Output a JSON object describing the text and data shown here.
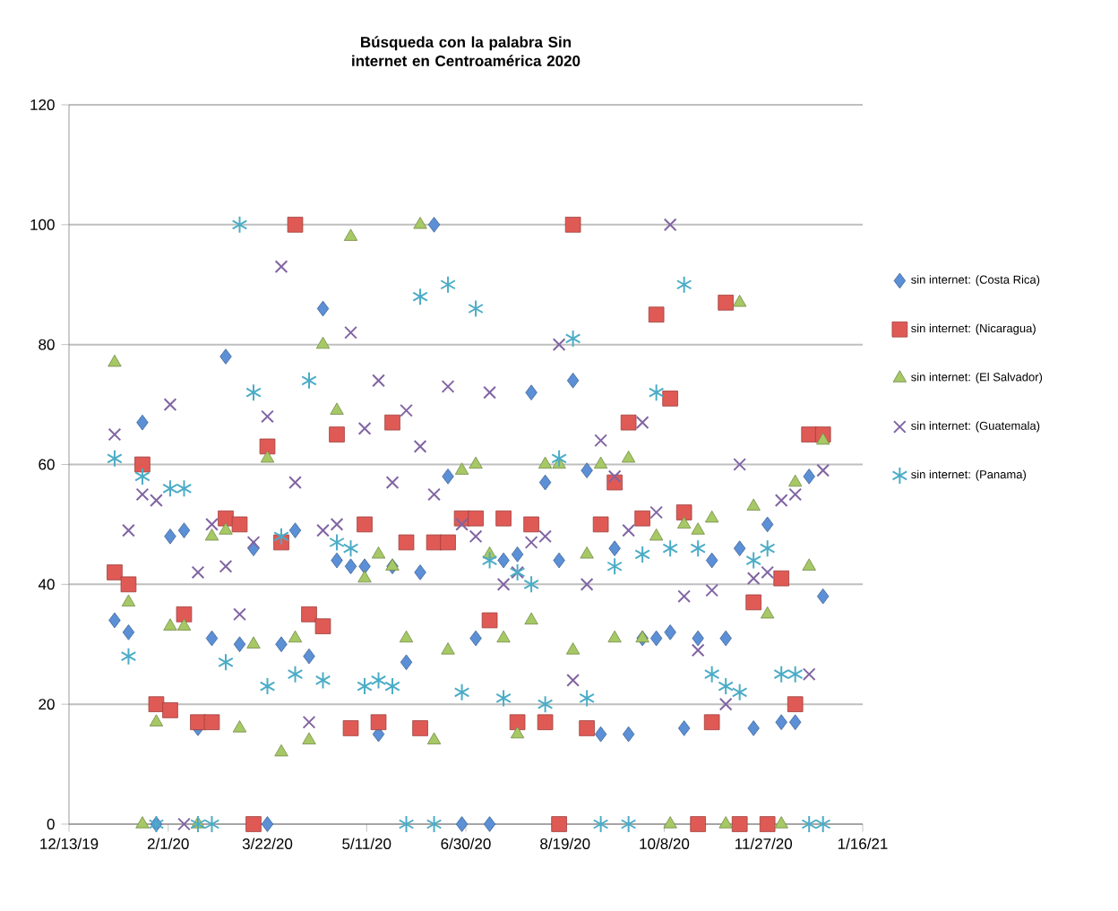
{
  "chart_data": {
    "type": "scatter",
    "title": "Búsqueda con la palabra Sin internet en Centroamérica  2020",
    "x": [
      "2020-01-05",
      "2020-01-12",
      "2020-01-19",
      "2020-01-26",
      "2020-02-02",
      "2020-02-09",
      "2020-02-16",
      "2020-02-23",
      "2020-03-01",
      "2020-03-08",
      "2020-03-15",
      "2020-03-22",
      "2020-03-29",
      "2020-04-05",
      "2020-04-12",
      "2020-04-19",
      "2020-04-26",
      "2020-05-03",
      "2020-05-10",
      "2020-05-17",
      "2020-05-24",
      "2020-05-31",
      "2020-06-07",
      "2020-06-14",
      "2020-06-21",
      "2020-06-28",
      "2020-07-05",
      "2020-07-12",
      "2020-07-19",
      "2020-07-26",
      "2020-08-02",
      "2020-08-09",
      "2020-08-16",
      "2020-08-23",
      "2020-08-30",
      "2020-09-06",
      "2020-09-13",
      "2020-09-20",
      "2020-09-27",
      "2020-10-04",
      "2020-10-11",
      "2020-10-18",
      "2020-10-25",
      "2020-11-01",
      "2020-11-08",
      "2020-11-15",
      "2020-11-22",
      "2020-11-29",
      "2020-12-06",
      "2020-12-13",
      "2020-12-20",
      "2020-12-27"
    ],
    "series": [
      {
        "name": "sin internet: (Costa Rica)",
        "color": "#5b8fd6",
        "marker": "diamond",
        "values": [
          34,
          32,
          67,
          0,
          48,
          49,
          16,
          31,
          78,
          30,
          46,
          0,
          30,
          49,
          28,
          86,
          44,
          43,
          43,
          15,
          43,
          27,
          42,
          100,
          58,
          0,
          31,
          0,
          44,
          45,
          72,
          57,
          44,
          74,
          59,
          15,
          46,
          15,
          31,
          31,
          32,
          16,
          31,
          44,
          31,
          46,
          16,
          50,
          17,
          17,
          58,
          38
        ]
      },
      {
        "name": "sin internet: (Nicaragua)",
        "color": "#e05a55",
        "marker": "square",
        "values": [
          42,
          40,
          60,
          20,
          19,
          35,
          17,
          17,
          51,
          50,
          0,
          63,
          47,
          100,
          35,
          33,
          65,
          16,
          50,
          17,
          67,
          47,
          16,
          47,
          47,
          51,
          51,
          34,
          51,
          17,
          50,
          17,
          0,
          100,
          16,
          50,
          57,
          67,
          51,
          85,
          71,
          52,
          0,
          17,
          87,
          0,
          37,
          0,
          41,
          20,
          65,
          65
        ]
      },
      {
        "name": "sin internet: (El Salvador)",
        "color": "#a6c865",
        "marker": "triangle",
        "values": [
          77,
          37,
          0,
          17,
          33,
          33,
          0,
          48,
          49,
          16,
          30,
          61,
          12,
          31,
          14,
          80,
          69,
          98,
          41,
          45,
          43,
          31,
          100,
          14,
          29,
          59,
          60,
          45,
          31,
          15,
          34,
          60,
          60,
          29,
          45,
          60,
          31,
          61,
          31,
          48,
          0,
          50,
          49,
          51,
          0,
          87,
          53,
          35,
          0,
          57,
          43,
          64
        ]
      },
      {
        "name": "sin internet: (Guatemala)",
        "color": "#8064a2",
        "marker": "cross",
        "values": [
          65,
          49,
          55,
          54,
          70,
          0,
          42,
          50,
          43,
          35,
          47,
          68,
          93,
          57,
          17,
          49,
          50,
          82,
          66,
          74,
          57,
          69,
          63,
          55,
          73,
          50,
          48,
          72,
          40,
          42,
          47,
          48,
          80,
          24,
          40,
          64,
          58,
          49,
          67,
          52,
          100,
          38,
          29,
          39,
          20,
          60,
          41,
          42,
          54,
          55,
          25,
          59
        ]
      },
      {
        "name": "sin internet: (Panama)",
        "color": "#4bacc6",
        "values": [
          61,
          28,
          58,
          0,
          56,
          56,
          0,
          0,
          27,
          100,
          72,
          23,
          48,
          25,
          74,
          24,
          47,
          46,
          23,
          24,
          23,
          0,
          88,
          0,
          90,
          22,
          86,
          44,
          21,
          42,
          40,
          20,
          61,
          81,
          21,
          0,
          43,
          0,
          45,
          72,
          46,
          90,
          46,
          25,
          23,
          22,
          44,
          46,
          25,
          25,
          0,
          0
        ]
      }
    ],
    "xlim": [
      "2019-12-13",
      "2021-01-16"
    ],
    "xticks": [
      {
        "value": "2019-12-13",
        "label": "12/13/19"
      },
      {
        "value": "2020-02-01",
        "label": "2/1/20"
      },
      {
        "value": "2020-03-22",
        "label": "3/22/20"
      },
      {
        "value": "2020-05-11",
        "label": "5/11/20"
      },
      {
        "value": "2020-06-30",
        "label": "6/30/20"
      },
      {
        "value": "2020-08-19",
        "label": "8/19/20"
      },
      {
        "value": "2020-10-08",
        "label": "10/8/20"
      },
      {
        "value": "2020-11-27",
        "label": "11/27/20"
      },
      {
        "value": "2021-01-16",
        "label": "1/16/21"
      }
    ],
    "ylim": [
      0,
      120
    ],
    "yticks": [
      0,
      20,
      40,
      60,
      80,
      100,
      120
    ],
    "grid": "y",
    "legend": "right"
  }
}
